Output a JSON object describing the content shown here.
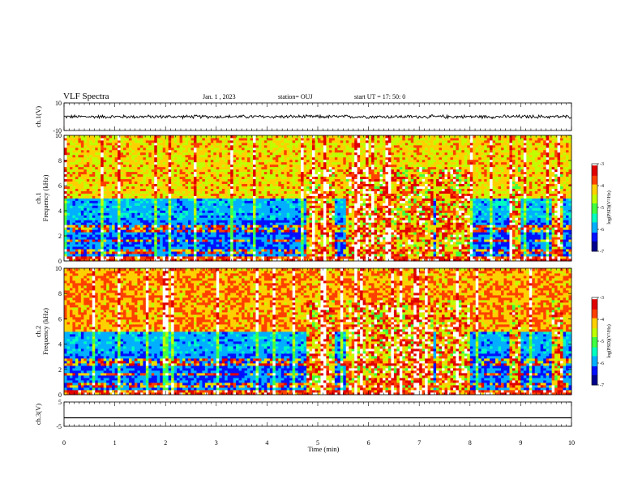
{
  "chart_data": {
    "type": "heatmap",
    "title": "VLF Spectra",
    "date": "Jan. 1 , 2023",
    "station": "station= OUJ",
    "start_ut": "start UT = 17: 50: 0",
    "xlabel": "Time (min)",
    "xlim": [
      0,
      10
    ],
    "x_ticks": [
      "0",
      "1",
      "2",
      "3",
      "4",
      "5",
      "6",
      "7",
      "8",
      "9",
      "10"
    ],
    "panels": [
      {
        "name": "ch.1 waveform",
        "type": "line",
        "ylabel": "ch.1(V)",
        "ylim": [
          -10,
          10
        ],
        "y_ticks": [
          "10",
          "-10"
        ],
        "mean": 0,
        "amplitude_range": [
          -1.5,
          1.5
        ]
      },
      {
        "name": "ch.1 spectrogram",
        "type": "heatmap",
        "ylabel_top": "ch.1",
        "ylabel": "Frequency (kHz)",
        "ylim": [
          0,
          10
        ],
        "y_ticks": [
          "0",
          "2",
          "4",
          "6",
          "8",
          "10"
        ],
        "colorbar": {
          "label": "log(PSD)(V²/Hz)",
          "range": [
            -7,
            -3
          ],
          "ticks": [
            "-3",
            "-4",
            "-5",
            "-6",
            "-7"
          ]
        },
        "bursts_min": [
          [
            4.8,
            5.35
          ],
          [
            5.55,
            7.25
          ],
          [
            7.35,
            8.0
          ],
          [
            8.8,
            9.0
          ],
          [
            9.6,
            9.85
          ]
        ]
      },
      {
        "name": "ch.2 spectrogram",
        "type": "heatmap",
        "ylabel_top": "ch.2",
        "ylabel": "Frequency (kHz)",
        "ylim": [
          0,
          10
        ],
        "y_ticks": [
          "0",
          "2",
          "4",
          "6",
          "8",
          "10"
        ],
        "colorbar": {
          "label": "log(PSD)(V²/Hz)",
          "range": [
            -7,
            -3
          ],
          "ticks": [
            "-3",
            "-4",
            "-5",
            "-6",
            "-7"
          ]
        },
        "bursts_min": [
          [
            4.8,
            5.35
          ],
          [
            5.55,
            7.25
          ],
          [
            7.35,
            8.0
          ],
          [
            8.8,
            9.0
          ],
          [
            9.6,
            9.85
          ]
        ]
      },
      {
        "name": "ch.3 waveform",
        "type": "line",
        "ylabel": "ch.3(V)",
        "ylim": [
          -5,
          5
        ],
        "y_ticks": [
          "5",
          "-5"
        ],
        "value": -1.5
      }
    ],
    "colormap": [
      "#00008c",
      "#0010ff",
      "#00b0ff",
      "#00ffc0",
      "#40ff40",
      "#c0ff00",
      "#ffd000",
      "#ff4000",
      "#e00000",
      "#ffffff"
    ]
  }
}
